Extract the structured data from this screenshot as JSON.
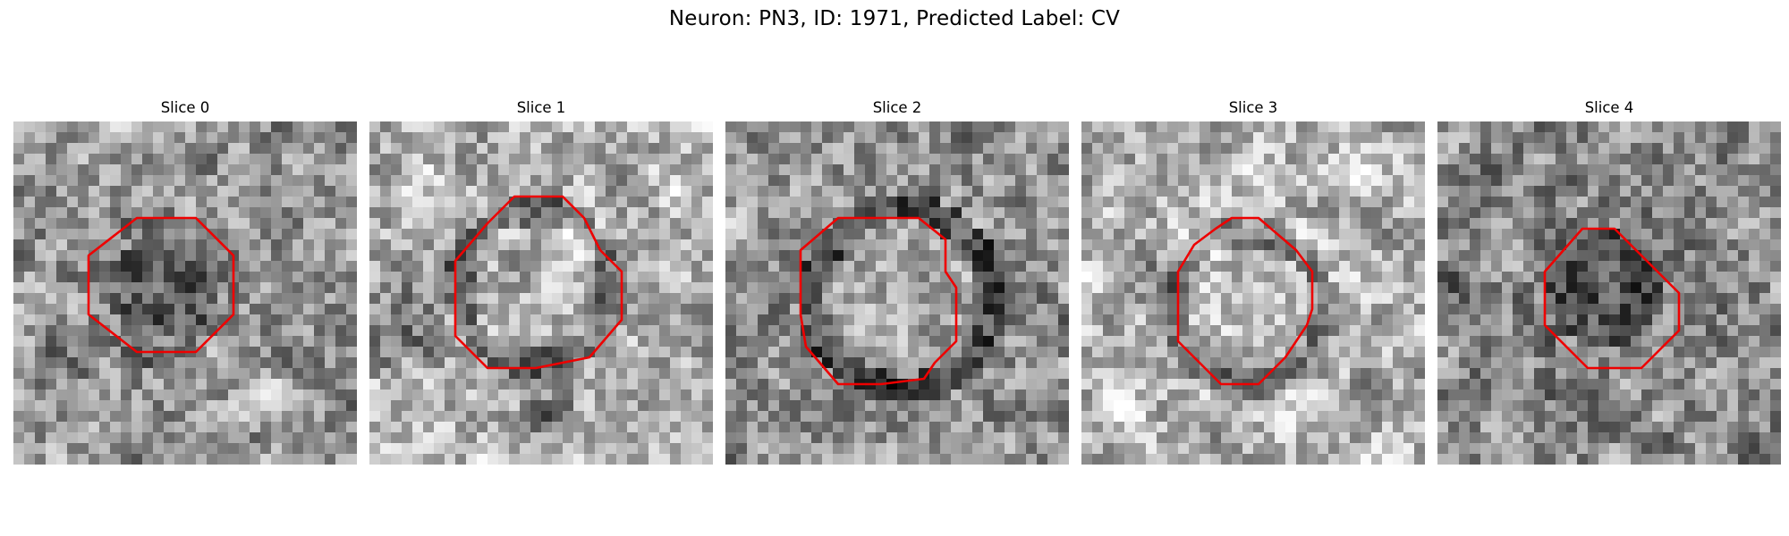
{
  "figure": {
    "title": "Neuron: PN3, ID: 1971, Predicted Label: CV"
  },
  "slices": [
    {
      "title": "Slice 0",
      "contour_color": "#ee0000",
      "vesicle_tone": "dark"
    },
    {
      "title": "Slice 1",
      "contour_color": "#ee0000",
      "vesicle_tone": "light"
    },
    {
      "title": "Slice 2",
      "contour_color": "#ee0000",
      "vesicle_tone": "medium"
    },
    {
      "title": "Slice 3",
      "contour_color": "#ee0000",
      "vesicle_tone": "light"
    },
    {
      "title": "Slice 4",
      "contour_color": "#ee0000",
      "vesicle_tone": "dark"
    }
  ],
  "colormap": "grayscale"
}
